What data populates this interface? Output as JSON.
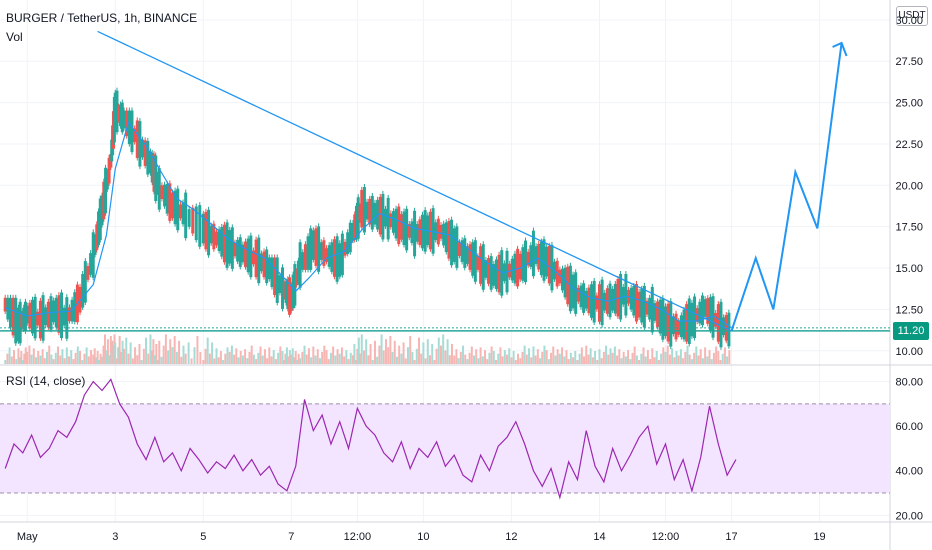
{
  "header": {
    "title": "BURGER / TetherUS, 1h, BINANCE",
    "volume_label": "Vol",
    "currency_badge": "USDT"
  },
  "colors": {
    "up": "#26a69a",
    "down": "#ef5350",
    "ma": "#2196f3",
    "trend": "#2196f3",
    "rsi": "#9c27b0",
    "rsi_band": "#f3e5ff"
  },
  "chart_data": [
    {
      "type": "line",
      "title": "BURGER / TetherUS, 1h, BINANCE",
      "ylim": [
        9.2,
        31.2
      ],
      "y_ticks": [
        "30.00",
        "27.50",
        "25.00",
        "22.50",
        "20.00",
        "17.50",
        "15.00",
        "12.50",
        "10.00"
      ],
      "y_tick_values": [
        30,
        27.5,
        25,
        22.5,
        20,
        17.5,
        15,
        12.5,
        10
      ],
      "x_ticks": [
        "May",
        "3",
        "5",
        "7",
        "12:00",
        "10",
        "12",
        "14",
        "12:00",
        "17",
        "19"
      ],
      "x_tick_values": [
        1,
        3,
        5,
        7,
        8.5,
        10,
        12,
        14,
        15.5,
        17,
        19
      ],
      "xlim": [
        0.45,
        20.6
      ],
      "current_price": "11.20",
      "current_price_value": 11.2,
      "series": [
        {
          "name": "close",
          "x": [
            0.5,
            0.8,
            1.0,
            1.3,
            1.6,
            1.9,
            2.2,
            2.5,
            2.7,
            2.9,
            3.0,
            3.2,
            3.5,
            3.8,
            4.0,
            4.3,
            4.6,
            5.0,
            5.3,
            5.6,
            5.9,
            6.2,
            6.5,
            6.8,
            7.0,
            7.2,
            7.5,
            7.8,
            8.1,
            8.4,
            8.6,
            8.9,
            9.2,
            9.5,
            9.8,
            10.1,
            10.4,
            10.7,
            11.0,
            11.3,
            11.6,
            11.9,
            12.2,
            12.5,
            12.8,
            13.1,
            13.4,
            13.7,
            14.0,
            14.3,
            14.6,
            14.9,
            15.2,
            15.5,
            15.8,
            16.1,
            16.4,
            16.7,
            17.0
          ],
          "values": [
            12.8,
            11.6,
            12.2,
            11.9,
            12.4,
            12.0,
            13.1,
            15.8,
            18.5,
            21.5,
            24.6,
            24.0,
            22.8,
            21.4,
            19.8,
            18.8,
            18.2,
            17.4,
            16.8,
            16.3,
            15.9,
            15.6,
            15.0,
            13.8,
            13.2,
            15.2,
            16.4,
            15.8,
            15.5,
            17.2,
            18.6,
            18.3,
            18.0,
            17.5,
            17.1,
            17.3,
            17.2,
            16.4,
            15.8,
            15.2,
            14.6,
            14.8,
            15.1,
            15.9,
            15.4,
            14.5,
            13.6,
            13.1,
            12.9,
            13.1,
            13.4,
            12.8,
            12.5,
            11.8,
            11.4,
            11.9,
            12.6,
            11.7,
            11.2
          ]
        },
        {
          "name": "moving-average",
          "x": [
            0.5,
            1.0,
            1.5,
            2.0,
            2.5,
            2.8,
            3.0,
            3.3,
            3.7,
            4.0,
            4.4,
            4.8,
            5.2,
            5.6,
            6.0,
            6.4,
            6.8,
            7.1,
            7.4,
            7.8,
            8.2,
            8.6,
            9.0,
            9.4,
            9.8,
            10.2,
            10.6,
            11.0,
            11.4,
            11.8,
            12.2,
            12.6,
            13.0,
            13.4,
            13.8,
            14.2,
            14.6,
            15.0,
            15.4,
            15.8,
            16.2,
            16.6,
            17.0
          ],
          "values": [
            12.6,
            12.1,
            12.3,
            12.4,
            14.0,
            17.0,
            21.0,
            23.8,
            22.4,
            21.0,
            19.2,
            18.5,
            17.6,
            16.7,
            16.1,
            15.6,
            14.5,
            13.6,
            14.4,
            15.6,
            16.0,
            17.3,
            18.3,
            17.9,
            17.4,
            17.2,
            17.0,
            16.2,
            15.4,
            14.7,
            15.0,
            15.6,
            14.8,
            13.8,
            13.2,
            13.0,
            13.3,
            13.0,
            12.5,
            11.8,
            11.8,
            12.1,
            11.4
          ]
        }
      ],
      "annotations": {
        "trendline": {
          "x": [
            2.6,
            17.0
          ],
          "y": [
            29.3,
            11.2
          ]
        },
        "projection": {
          "x": [
            17.0,
            17.55,
            17.95,
            18.45,
            18.95,
            19.5
          ],
          "y": [
            11.2,
            15.6,
            12.5,
            20.8,
            17.4,
            28.6
          ]
        },
        "horizontal_support": 11.2
      }
    },
    {
      "type": "line",
      "title": "RSI (14, close)",
      "ylim": [
        17,
        87
      ],
      "y_ticks": [
        "80.00",
        "60.00",
        "40.00",
        "20.00"
      ],
      "y_tick_values": [
        80,
        60,
        40,
        20
      ],
      "bands": [
        30,
        70
      ],
      "series": [
        {
          "name": "RSI",
          "x": [
            0.5,
            0.7,
            0.9,
            1.1,
            1.3,
            1.5,
            1.7,
            1.9,
            2.1,
            2.3,
            2.5,
            2.7,
            2.9,
            3.1,
            3.3,
            3.5,
            3.7,
            3.9,
            4.1,
            4.3,
            4.5,
            4.7,
            4.9,
            5.1,
            5.3,
            5.5,
            5.7,
            5.9,
            6.1,
            6.3,
            6.5,
            6.7,
            6.9,
            7.1,
            7.3,
            7.5,
            7.7,
            7.9,
            8.1,
            8.3,
            8.5,
            8.7,
            8.9,
            9.1,
            9.3,
            9.5,
            9.7,
            9.9,
            10.1,
            10.3,
            10.5,
            10.7,
            10.9,
            11.1,
            11.3,
            11.5,
            11.7,
            11.9,
            12.1,
            12.3,
            12.5,
            12.7,
            12.9,
            13.1,
            13.3,
            13.5,
            13.7,
            13.9,
            14.1,
            14.3,
            14.5,
            14.7,
            14.9,
            15.1,
            15.3,
            15.5,
            15.7,
            15.9,
            16.1,
            16.3,
            16.5,
            16.7,
            16.9,
            17.1
          ],
          "values": [
            41,
            52,
            48,
            56,
            46,
            50,
            58,
            55,
            62,
            74,
            80,
            76,
            81,
            70,
            64,
            52,
            45,
            55,
            44,
            48,
            40,
            50,
            45,
            39,
            44,
            41,
            47,
            40,
            45,
            38,
            42,
            34,
            31,
            42,
            72,
            58,
            65,
            52,
            62,
            50,
            68,
            60,
            56,
            48,
            44,
            53,
            41,
            50,
            46,
            53,
            42,
            47,
            38,
            35,
            47,
            40,
            51,
            55,
            62,
            52,
            40,
            33,
            41,
            28,
            44,
            36,
            58,
            42,
            35,
            50,
            40,
            47,
            55,
            60,
            43,
            52,
            36,
            45,
            31,
            46,
            69,
            52,
            38,
            45
          ]
        }
      ]
    }
  ]
}
